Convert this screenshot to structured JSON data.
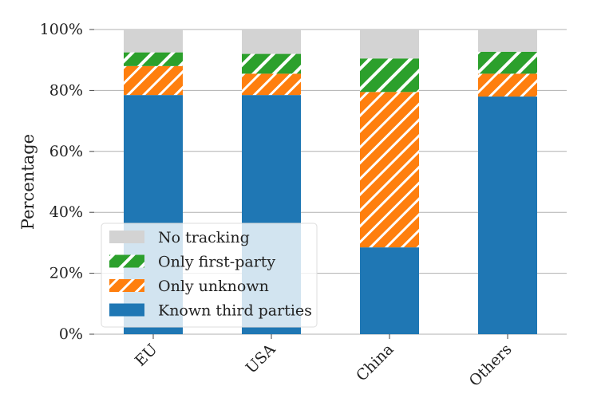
{
  "chart_data": {
    "type": "bar",
    "stacked": true,
    "categories": [
      "EU",
      "USA",
      "China",
      "Others"
    ],
    "series": [
      {
        "name": "Known third parties",
        "values": [
          78.5,
          78.5,
          28.5,
          78.0
        ],
        "color": "#1f77b4",
        "hatch": "none"
      },
      {
        "name": "Only unknown",
        "values": [
          9.5,
          7.0,
          51.0,
          7.5
        ],
        "color": "#ff7f0e",
        "hatch": "diagonal-fine"
      },
      {
        "name": "Only first-party",
        "values": [
          4.5,
          6.5,
          11.0,
          7.2
        ],
        "color": "#2ca02c",
        "hatch": "diagonal-coarse"
      },
      {
        "name": "No tracking",
        "values": [
          7.5,
          8.0,
          9.5,
          7.3
        ],
        "color": "#d3d3d3",
        "hatch": "none"
      }
    ],
    "ylabel": "Percentage",
    "xlabel": "",
    "ylim": [
      0,
      100
    ],
    "yticks": [
      "0%",
      "20%",
      "40%",
      "60%",
      "80%",
      "100%"
    ],
    "grid": "y",
    "legend_position": "lower-left",
    "legend_order": [
      "No tracking",
      "Only first-party",
      "Only unknown",
      "Known third parties"
    ]
  }
}
